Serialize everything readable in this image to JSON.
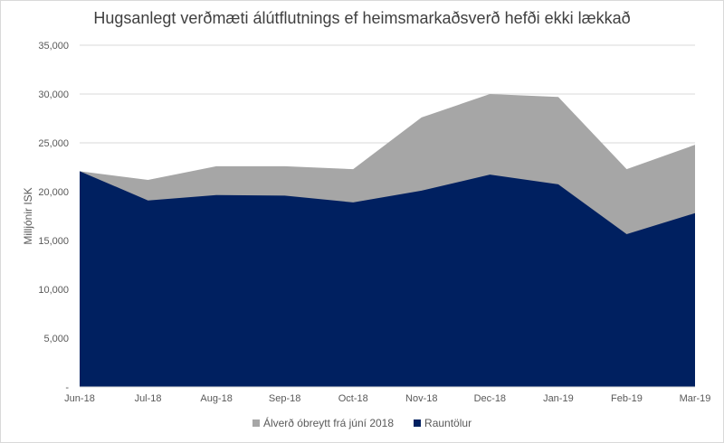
{
  "chart_data": {
    "type": "area",
    "stacked": false,
    "title": "Hugsanlegt verðmæti álútflutnings ef heimsmarkaðsverð hefði ekki lækkað",
    "xlabel": "",
    "ylabel": "Milljónir ISK",
    "ylim": [
      0,
      35000
    ],
    "yticks": [
      0,
      5000,
      10000,
      15000,
      20000,
      25000,
      30000,
      35000
    ],
    "ytick_labels": [
      "-",
      "5,000",
      "10,000",
      "15,000",
      "20,000",
      "25,000",
      "30,000",
      "35,000"
    ],
    "grid": true,
    "legend_position": "bottom",
    "categories": [
      "Jun-18",
      "Jul-18",
      "Aug-18",
      "Sep-18",
      "Oct-18",
      "Nov-18",
      "Dec-18",
      "Jan-19",
      "Feb-19",
      "Mar-19"
    ],
    "series": [
      {
        "name": "Álverð óbreytt frá júní 2018",
        "color": "#a6a6a6",
        "values": [
          22100,
          21200,
          22600,
          22600,
          22300,
          27600,
          30000,
          29700,
          22300,
          24800
        ]
      },
      {
        "name": "Rauntölur",
        "color": "#002060",
        "values": [
          22100,
          19100,
          19650,
          19600,
          18900,
          20100,
          21750,
          20750,
          15650,
          17800
        ]
      }
    ]
  }
}
